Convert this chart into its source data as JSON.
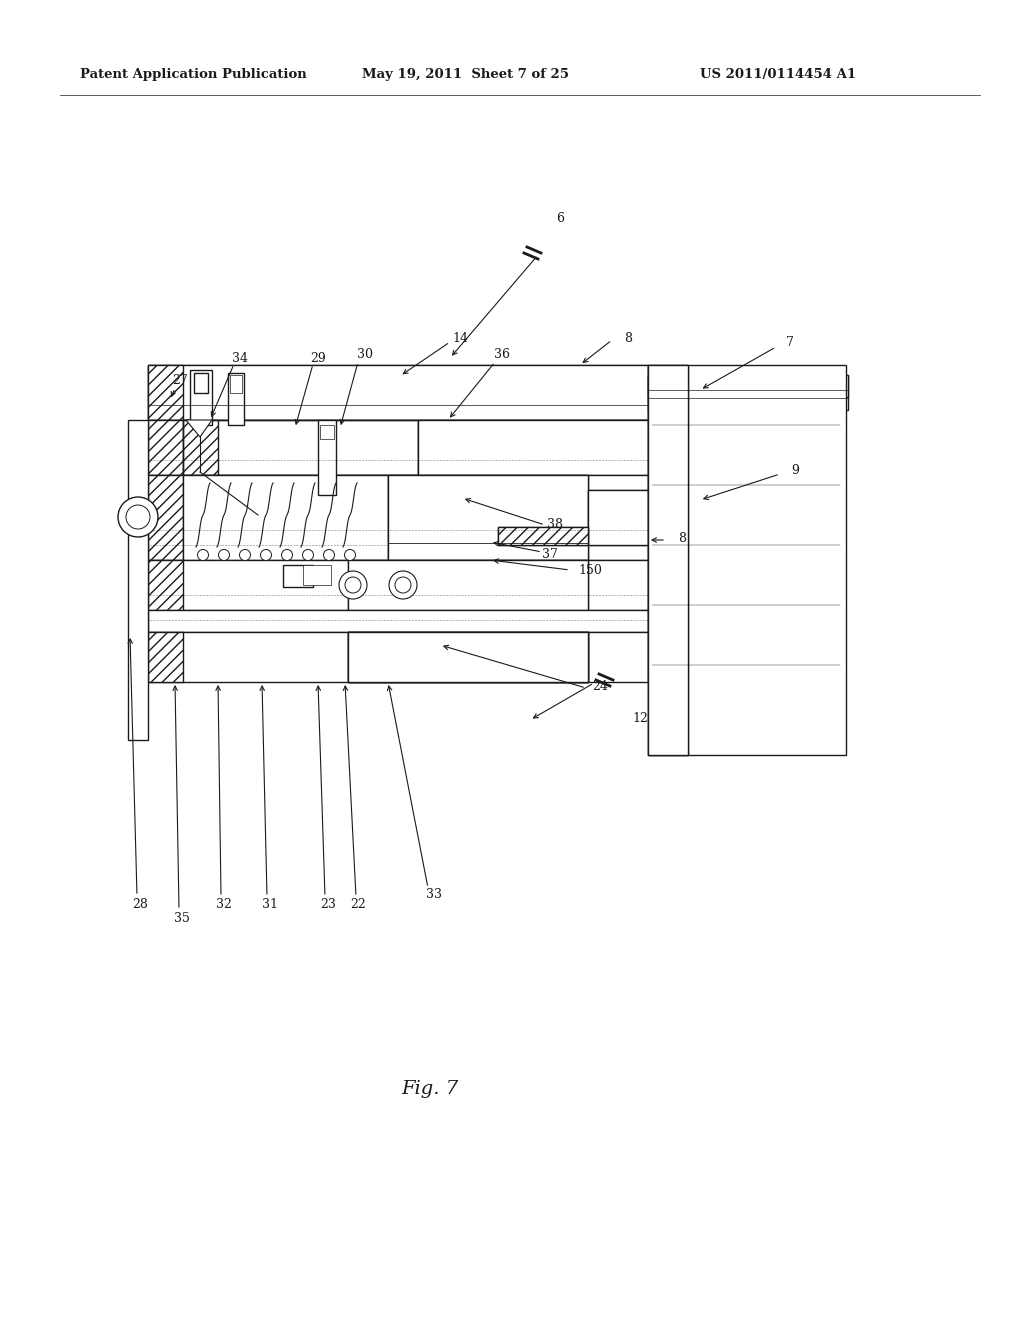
{
  "title_left": "Patent Application Publication",
  "title_mid": "May 19, 2011  Sheet 7 of 25",
  "title_right": "US 2011/0114454 A1",
  "fig_label": "Fig. 7",
  "bg_color": "#ffffff",
  "line_color": "#1a1a1a"
}
